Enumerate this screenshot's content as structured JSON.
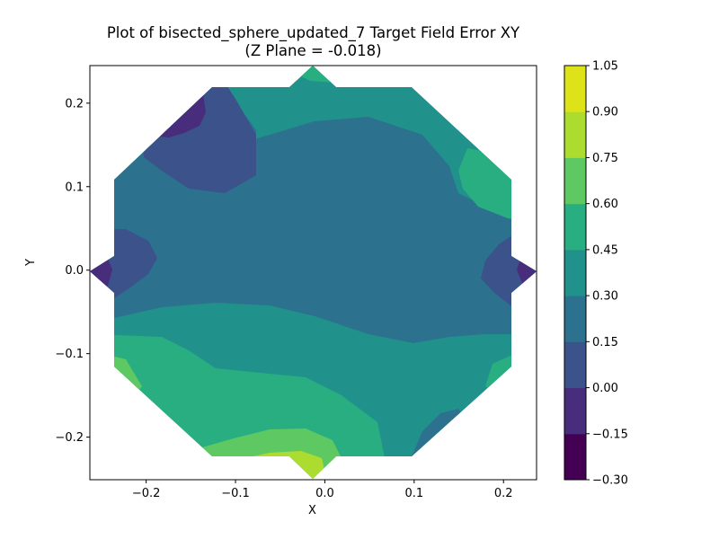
{
  "chart_data": {
    "type": "contour",
    "title": "Plot of bisected_sphere_updated_7 Target Field Error XY",
    "subtitle": "(Z Plane = -0.018)",
    "xlabel": "X",
    "ylabel": "Y",
    "xlim": [
      -0.263,
      0.237
    ],
    "ylim": [
      -0.251,
      0.245
    ],
    "x_ticks": [
      -0.2,
      -0.1,
      0.0,
      0.1,
      0.2
    ],
    "x_tick_labels": [
      "−0.2",
      "−0.1",
      "0.0",
      "0.1",
      "0.2"
    ],
    "y_ticks": [
      -0.2,
      -0.1,
      0.0,
      0.1,
      0.2
    ],
    "y_tick_labels": [
      "−0.2",
      "−0.1",
      "0.0",
      "0.1",
      "0.2"
    ],
    "colorbar": {
      "levels": [
        -0.3,
        -0.15,
        0.0,
        0.15,
        0.3,
        0.45,
        0.6,
        0.75,
        0.9,
        1.05
      ],
      "tick_labels": [
        "−0.30",
        "−0.15",
        "0.00",
        "0.15",
        "0.30",
        "0.45",
        "0.60",
        "0.75",
        "0.90",
        "1.05"
      ],
      "colors": [
        "#440154",
        "#472d7b",
        "#3b528b",
        "#2c728e",
        "#21918c",
        "#28ae80",
        "#5ec962",
        "#addc30",
        "#dde318"
      ]
    },
    "grid": false
  }
}
